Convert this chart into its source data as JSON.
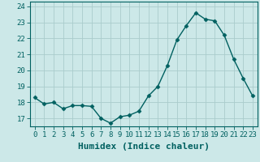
{
  "x": [
    0,
    1,
    2,
    3,
    4,
    5,
    6,
    7,
    8,
    9,
    10,
    11,
    12,
    13,
    14,
    15,
    16,
    17,
    18,
    19,
    20,
    21,
    22,
    23
  ],
  "y": [
    18.3,
    17.9,
    18.0,
    17.6,
    17.8,
    17.8,
    17.75,
    17.0,
    16.7,
    17.1,
    17.2,
    17.45,
    18.4,
    19.0,
    20.3,
    21.9,
    22.8,
    23.6,
    23.2,
    23.1,
    22.2,
    20.7,
    19.5,
    18.4
  ],
  "line_color": "#006060",
  "marker": "D",
  "markersize": 2.5,
  "linewidth": 1.0,
  "bg_color": "#cce8e8",
  "grid_color": "#aacccc",
  "xlabel": "Humidex (Indice chaleur)",
  "xlabel_fontsize": 8,
  "ylim": [
    16.5,
    24.3
  ],
  "yticks": [
    17,
    18,
    19,
    20,
    21,
    22,
    23,
    24
  ],
  "xticks": [
    0,
    1,
    2,
    3,
    4,
    5,
    6,
    7,
    8,
    9,
    10,
    11,
    12,
    13,
    14,
    15,
    16,
    17,
    18,
    19,
    20,
    21,
    22,
    23
  ],
  "tick_fontsize": 6.5,
  "tick_color": "#006060",
  "spine_color": "#006060"
}
